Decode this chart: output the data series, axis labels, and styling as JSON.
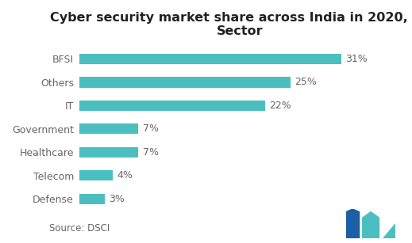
{
  "title": "Cyber security market share across India in 2020, by\nSector",
  "categories": [
    "Defense",
    "Telecom",
    "Healthcare",
    "Government",
    "IT",
    "Others",
    "BFSI"
  ],
  "values": [
    3,
    4,
    7,
    7,
    22,
    25,
    31
  ],
  "bar_color": "#4bbfbf",
  "label_color": "#666666",
  "title_color": "#222222",
  "source_text": "Source: DSCI",
  "background_color": "#ffffff",
  "title_fontsize": 11.5,
  "label_fontsize": 9,
  "tick_fontsize": 9,
  "source_fontsize": 8.5,
  "xlim": [
    0,
    38
  ]
}
